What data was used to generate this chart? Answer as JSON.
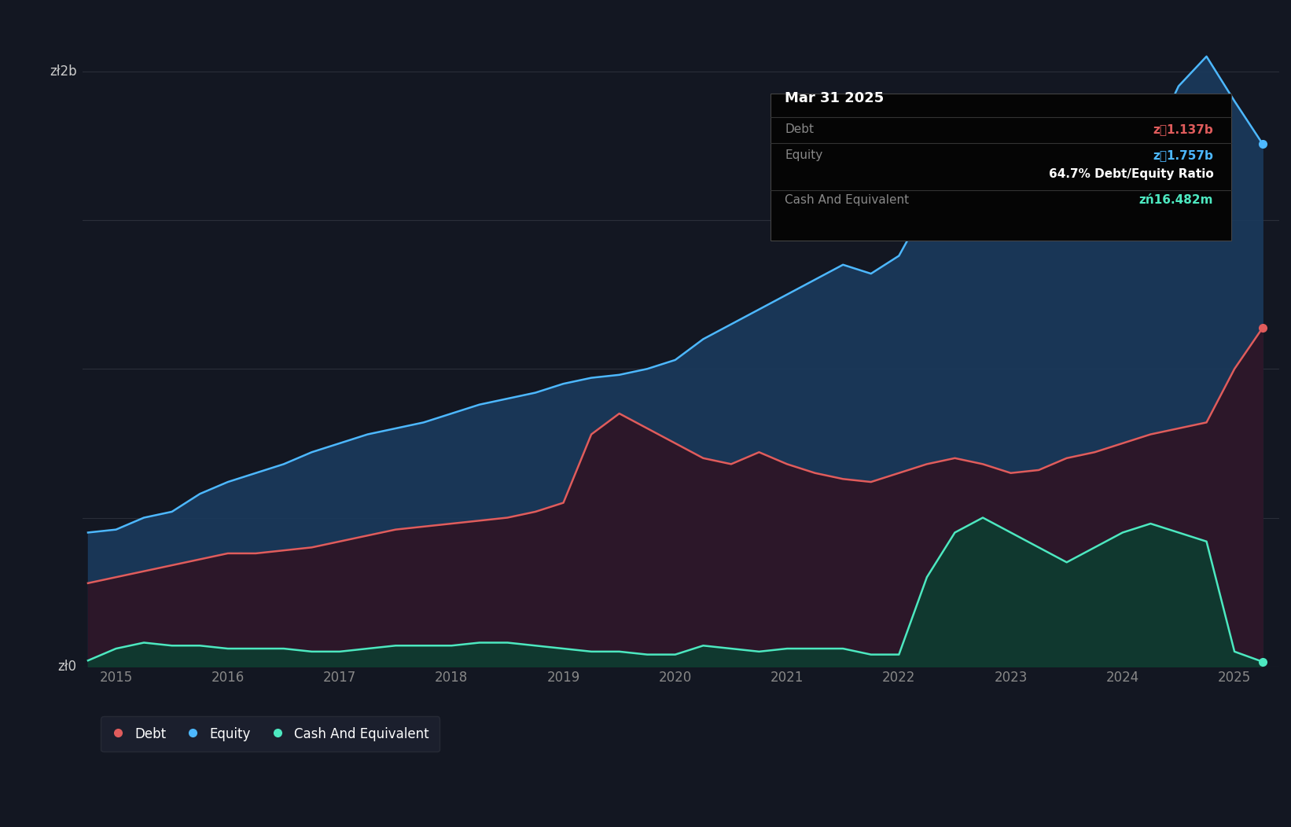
{
  "bg_color": "#131722",
  "plot_bg_color": "#131722",
  "grid_color": "#2a2e39",
  "tooltip_title": "Mar 31 2025",
  "tooltip_debt_label": "Debt",
  "tooltip_debt_value": "z\u00141.137b",
  "tooltip_debt_color": "#e05c5c",
  "tooltip_equity_label": "Equity",
  "tooltip_equity_value": "z\u00141.757b",
  "tooltip_equity_color": "#4db8ff",
  "tooltip_ratio": "64.7% Debt/Equity Ratio",
  "tooltip_ratio_color": "#ffffff",
  "tooltip_cash_label": "Cash And Equivalent",
  "tooltip_cash_value": "zń16.482m",
  "tooltip_cash_color": "#4de8c0",
  "y_label_2b": "zł2b",
  "y_label_0": "zł0",
  "debt_color": "#e05c5c",
  "equity_color": "#4db8ff",
  "cash_color": "#4de8c0",
  "x_ticks": [
    "2015",
    "2016",
    "2017",
    "2018",
    "2019",
    "2020",
    "2021",
    "2022",
    "2023",
    "2024",
    "2025"
  ],
  "ylim": [
    0,
    2.2
  ],
  "xlim_start": 2014.7,
  "xlim_end": 2025.4,
  "equity_data": [
    [
      2014.75,
      0.45
    ],
    [
      2015.0,
      0.46
    ],
    [
      2015.25,
      0.5
    ],
    [
      2015.5,
      0.52
    ],
    [
      2015.75,
      0.58
    ],
    [
      2016.0,
      0.62
    ],
    [
      2016.25,
      0.65
    ],
    [
      2016.5,
      0.68
    ],
    [
      2016.75,
      0.72
    ],
    [
      2017.0,
      0.75
    ],
    [
      2017.25,
      0.78
    ],
    [
      2017.5,
      0.8
    ],
    [
      2017.75,
      0.82
    ],
    [
      2018.0,
      0.85
    ],
    [
      2018.25,
      0.88
    ],
    [
      2018.5,
      0.9
    ],
    [
      2018.75,
      0.92
    ],
    [
      2019.0,
      0.95
    ],
    [
      2019.25,
      0.97
    ],
    [
      2019.5,
      0.98
    ],
    [
      2019.75,
      1.0
    ],
    [
      2020.0,
      1.03
    ],
    [
      2020.25,
      1.1
    ],
    [
      2020.5,
      1.15
    ],
    [
      2020.75,
      1.2
    ],
    [
      2021.0,
      1.25
    ],
    [
      2021.25,
      1.3
    ],
    [
      2021.5,
      1.35
    ],
    [
      2021.75,
      1.32
    ],
    [
      2022.0,
      1.38
    ],
    [
      2022.25,
      1.55
    ],
    [
      2022.5,
      1.62
    ],
    [
      2022.75,
      1.65
    ],
    [
      2023.0,
      1.6
    ],
    [
      2023.25,
      1.62
    ],
    [
      2023.5,
      1.55
    ],
    [
      2023.75,
      1.5
    ],
    [
      2024.0,
      1.55
    ],
    [
      2024.25,
      1.75
    ],
    [
      2024.5,
      1.95
    ],
    [
      2024.75,
      2.05
    ],
    [
      2025.0,
      1.9
    ],
    [
      2025.25,
      1.757
    ]
  ],
  "debt_data": [
    [
      2014.75,
      0.28
    ],
    [
      2015.0,
      0.3
    ],
    [
      2015.25,
      0.32
    ],
    [
      2015.5,
      0.34
    ],
    [
      2015.75,
      0.36
    ],
    [
      2016.0,
      0.38
    ],
    [
      2016.25,
      0.38
    ],
    [
      2016.5,
      0.39
    ],
    [
      2016.75,
      0.4
    ],
    [
      2017.0,
      0.42
    ],
    [
      2017.25,
      0.44
    ],
    [
      2017.5,
      0.46
    ],
    [
      2017.75,
      0.47
    ],
    [
      2018.0,
      0.48
    ],
    [
      2018.25,
      0.49
    ],
    [
      2018.5,
      0.5
    ],
    [
      2018.75,
      0.52
    ],
    [
      2019.0,
      0.55
    ],
    [
      2019.25,
      0.78
    ],
    [
      2019.5,
      0.85
    ],
    [
      2019.75,
      0.8
    ],
    [
      2020.0,
      0.75
    ],
    [
      2020.25,
      0.7
    ],
    [
      2020.5,
      0.68
    ],
    [
      2020.75,
      0.72
    ],
    [
      2021.0,
      0.68
    ],
    [
      2021.25,
      0.65
    ],
    [
      2021.5,
      0.63
    ],
    [
      2021.75,
      0.62
    ],
    [
      2022.0,
      0.65
    ],
    [
      2022.25,
      0.68
    ],
    [
      2022.5,
      0.7
    ],
    [
      2022.75,
      0.68
    ],
    [
      2023.0,
      0.65
    ],
    [
      2023.25,
      0.66
    ],
    [
      2023.5,
      0.7
    ],
    [
      2023.75,
      0.72
    ],
    [
      2024.0,
      0.75
    ],
    [
      2024.25,
      0.78
    ],
    [
      2024.5,
      0.8
    ],
    [
      2024.75,
      0.82
    ],
    [
      2025.0,
      1.0
    ],
    [
      2025.25,
      1.137
    ]
  ],
  "cash_data": [
    [
      2014.75,
      0.02
    ],
    [
      2015.0,
      0.06
    ],
    [
      2015.25,
      0.08
    ],
    [
      2015.5,
      0.07
    ],
    [
      2015.75,
      0.07
    ],
    [
      2016.0,
      0.06
    ],
    [
      2016.25,
      0.06
    ],
    [
      2016.5,
      0.06
    ],
    [
      2016.75,
      0.05
    ],
    [
      2017.0,
      0.05
    ],
    [
      2017.25,
      0.06
    ],
    [
      2017.5,
      0.07
    ],
    [
      2017.75,
      0.07
    ],
    [
      2018.0,
      0.07
    ],
    [
      2018.25,
      0.08
    ],
    [
      2018.5,
      0.08
    ],
    [
      2018.75,
      0.07
    ],
    [
      2019.0,
      0.06
    ],
    [
      2019.25,
      0.05
    ],
    [
      2019.5,
      0.05
    ],
    [
      2019.75,
      0.04
    ],
    [
      2020.0,
      0.04
    ],
    [
      2020.25,
      0.07
    ],
    [
      2020.5,
      0.06
    ],
    [
      2020.75,
      0.05
    ],
    [
      2021.0,
      0.06
    ],
    [
      2021.25,
      0.06
    ],
    [
      2021.5,
      0.06
    ],
    [
      2021.75,
      0.04
    ],
    [
      2022.0,
      0.04
    ],
    [
      2022.25,
      0.3
    ],
    [
      2022.5,
      0.45
    ],
    [
      2022.75,
      0.5
    ],
    [
      2023.0,
      0.45
    ],
    [
      2023.25,
      0.4
    ],
    [
      2023.5,
      0.35
    ],
    [
      2023.75,
      0.4
    ],
    [
      2024.0,
      0.45
    ],
    [
      2024.25,
      0.48
    ],
    [
      2024.5,
      0.45
    ],
    [
      2024.75,
      0.42
    ],
    [
      2025.0,
      0.05
    ],
    [
      2025.25,
      0.016
    ]
  ]
}
